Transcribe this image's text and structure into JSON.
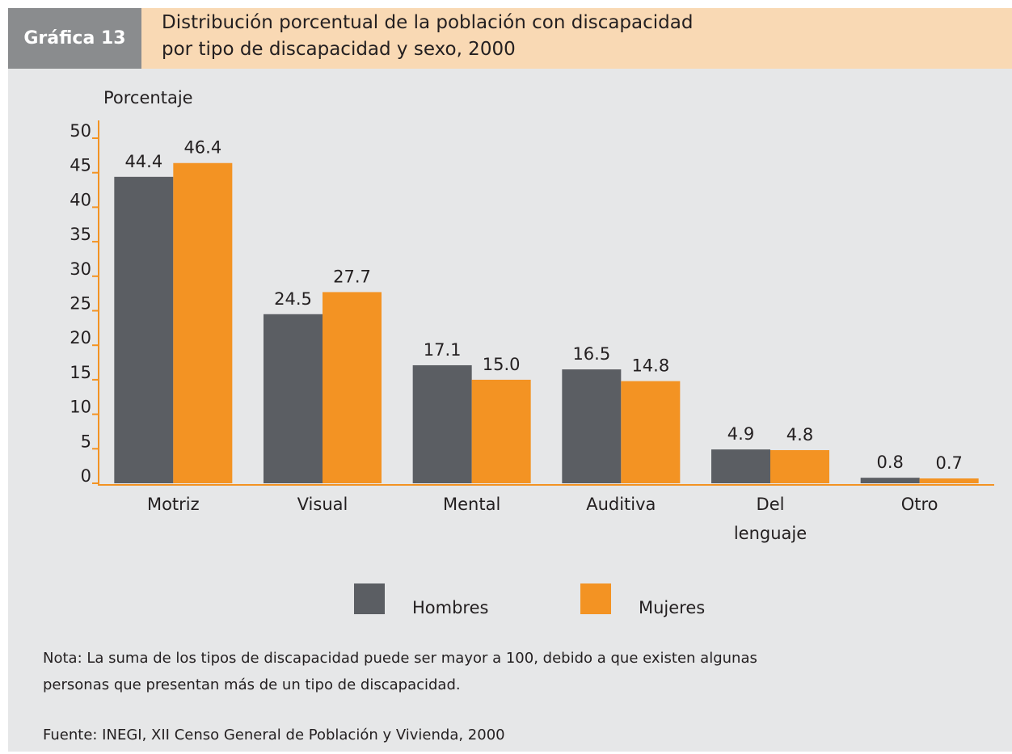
{
  "header": {
    "label": "Gráfica 13",
    "title": "Distribución porcentual de la población con discapacidad por tipo de discapacidad y sexo, 2000"
  },
  "chart_data": {
    "type": "bar",
    "y_label": "Porcentaje",
    "categories": [
      "Motriz",
      "Visual",
      "Mental",
      "Auditiva",
      "Del lenguaje",
      "Otro"
    ],
    "series": [
      {
        "name": "Hombres",
        "color": "#5b5e63",
        "values": [
          44.4,
          24.5,
          17.1,
          16.5,
          4.9,
          0.8
        ]
      },
      {
        "name": "Mujeres",
        "color": "#f39323",
        "values": [
          46.4,
          27.7,
          15.0,
          14.8,
          4.8,
          0.7
        ],
        "value_labels": [
          "46.4",
          "27.7",
          "15.0",
          "14.8",
          "4.8",
          "0.7"
        ]
      }
    ],
    "ylim": [
      0,
      50
    ],
    "yticks": [
      0,
      5,
      10,
      15,
      20,
      25,
      30,
      35,
      40,
      45,
      50
    ],
    "axis_color": "#f39323"
  },
  "notes": {
    "nota": "Nota: La suma de los tipos de discapacidad puede ser mayor a 100, debido a que existen algunas personas que presentan más de un tipo de discapacidad.",
    "fuente": "Fuente: INEGI, XII Censo General de Población y Vivienda, 2000"
  }
}
